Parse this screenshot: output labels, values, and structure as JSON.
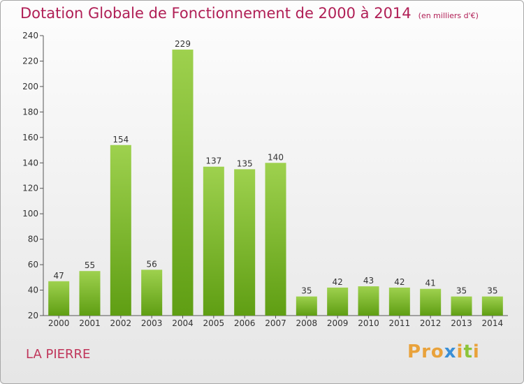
{
  "title": "Dotation Globale de Fonctionnement de 2000 à 2014",
  "unit": "(en milliers d'€)",
  "commune": "LA PIERRE",
  "logo": {
    "text": "Proxiti",
    "colors": [
      "#e9a23b",
      "#3a8fd6",
      "#8cc43a"
    ]
  },
  "colors": {
    "bar_top": "#9ed14e",
    "bar_bottom": "#5f9e13",
    "title": "#b01e55"
  },
  "chart_data": {
    "type": "bar",
    "categories": [
      "2000",
      "2001",
      "2002",
      "2003",
      "2004",
      "2005",
      "2006",
      "2007",
      "2008",
      "2009",
      "2010",
      "2011",
      "2012",
      "2013",
      "2014"
    ],
    "values": [
      47,
      55,
      154,
      56,
      229,
      137,
      135,
      140,
      35,
      42,
      43,
      42,
      41,
      35,
      35
    ],
    "ylim": [
      20,
      240
    ],
    "yticks": [
      20,
      40,
      60,
      80,
      100,
      120,
      140,
      160,
      180,
      200,
      220,
      240
    ],
    "grid": false
  }
}
